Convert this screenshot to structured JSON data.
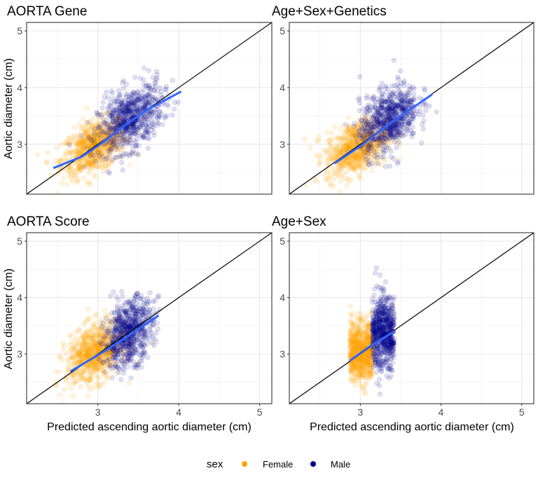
{
  "chart_data": {
    "type": "scatter",
    "shared": {
      "xlabel": "Predicted ascending aortic diameter (cm)",
      "ylabel": "Aortic diameter (cm)",
      "xlim": [
        2.12,
        5.15
      ],
      "ylim": [
        2.12,
        5.15
      ],
      "xticks": [
        "3",
        "4",
        "5"
      ],
      "yticks": [
        "3",
        "4",
        "5"
      ],
      "grid": true,
      "reference_line": "y = x"
    },
    "legend": {
      "title": "sex",
      "placement": "bottom",
      "entries": [
        {
          "label": "Female",
          "color": "#FFA500"
        },
        {
          "label": "Male",
          "color": "#00008B"
        }
      ]
    },
    "smooth_color": "#3366FF",
    "panels": [
      {
        "title": "AORTA Gene",
        "clusters": {
          "Female": {
            "x_mean": 2.95,
            "x_sd": 0.2,
            "y_mean": 2.95,
            "y_sd": 0.25,
            "corr": 0.45
          },
          "Male": {
            "x_mean": 3.4,
            "x_sd": 0.2,
            "y_mean": 3.45,
            "y_sd": 0.3,
            "corr": 0.45
          }
        },
        "smooth": [
          [
            2.45,
            2.58
          ],
          [
            2.8,
            2.78
          ],
          [
            3.0,
            2.97
          ],
          [
            3.3,
            3.3
          ],
          [
            3.6,
            3.6
          ],
          [
            4.03,
            3.93
          ]
        ]
      },
      {
        "title": "Age+Sex+Genetics",
        "clusters": {
          "Female": {
            "x_mean": 2.95,
            "x_sd": 0.19,
            "y_mean": 2.95,
            "y_sd": 0.25,
            "corr": 0.4
          },
          "Male": {
            "x_mean": 3.35,
            "x_sd": 0.18,
            "y_mean": 3.45,
            "y_sd": 0.3,
            "corr": 0.4
          }
        },
        "smooth": [
          [
            2.68,
            2.66
          ],
          [
            3.0,
            2.97
          ],
          [
            3.4,
            3.4
          ],
          [
            3.89,
            3.88
          ]
        ]
      },
      {
        "title": "AORTA Score",
        "clusters": {
          "Female": {
            "x_mean": 2.95,
            "x_sd": 0.17,
            "y_mean": 3.0,
            "y_sd": 0.27,
            "corr": 0.35
          },
          "Male": {
            "x_mean": 3.38,
            "x_sd": 0.15,
            "y_mean": 3.38,
            "y_sd": 0.3,
            "corr": 0.35
          }
        },
        "smooth": [
          [
            2.66,
            2.69
          ],
          [
            3.0,
            2.98
          ],
          [
            3.3,
            3.25
          ],
          [
            3.75,
            3.68
          ]
        ]
      },
      {
        "title": "Age+Sex",
        "clusters": {
          "Female": {
            "x_min": 2.87,
            "x_max": 3.15,
            "y_mean": 3.05,
            "y_sd": 0.27,
            "corr": 0
          },
          "Male": {
            "x_min": 3.15,
            "x_max": 3.42,
            "y_mean": 3.38,
            "y_sd": 0.32,
            "corr": 0
          }
        },
        "smooth": [
          [
            2.87,
            2.88
          ],
          [
            3.1,
            3.12
          ],
          [
            3.42,
            3.4
          ]
        ]
      }
    ]
  }
}
